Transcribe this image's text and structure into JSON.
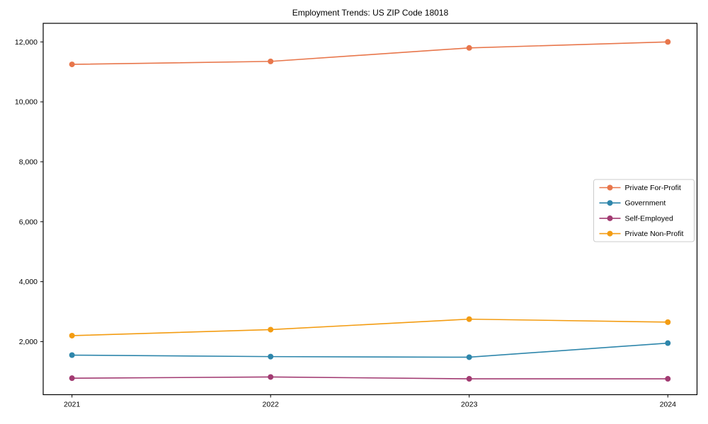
{
  "chart_data": {
    "type": "line",
    "title": "Employment Trends: US ZIP Code 18018",
    "xlabel": "",
    "ylabel": "",
    "x": [
      2021,
      2022,
      2023,
      2024
    ],
    "x_tick_labels": [
      "2021",
      "2022",
      "2023",
      "2024"
    ],
    "y_tick_values": [
      2000,
      4000,
      6000,
      8000,
      10000,
      12000
    ],
    "y_tick_labels": [
      "2,000",
      "4,000",
      "6,000",
      "8,000",
      "10,000",
      "12,000"
    ],
    "xlim": [
      2020.855,
      2024.147
    ],
    "ylim": [
      230,
      12620
    ],
    "grid": false,
    "legend_position": "center-right",
    "background_color": "#ffffff",
    "spine_color": "#000000",
    "legend_border_color": "#cccccc",
    "series": [
      {
        "name": "Private For-Profit",
        "color": "#E8764B",
        "values": [
          11250,
          11350,
          11800,
          12000
        ]
      },
      {
        "name": "Government",
        "color": "#2E86AB",
        "values": [
          1550,
          1500,
          1480,
          1950
        ]
      },
      {
        "name": "Self-Employed",
        "color": "#A23B72",
        "values": [
          780,
          820,
          760,
          760
        ]
      },
      {
        "name": "Private Non-Profit",
        "color": "#F39C12",
        "values": [
          2200,
          2400,
          2750,
          2650
        ]
      }
    ]
  }
}
